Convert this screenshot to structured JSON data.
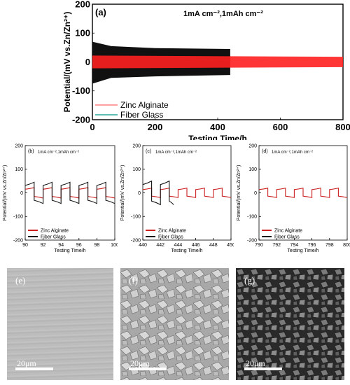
{
  "charts": [
    {
      "id": "a",
      "panel_label": "(a)",
      "condition": "1mA cm⁻²,1mAh cm⁻²",
      "ylabel": "Potential/(mV vs.Zn/Zn²⁺)",
      "xlabel": "Testing Time/h",
      "xlim": [
        0,
        800
      ],
      "ylim": [
        -200,
        200
      ],
      "xticks": [
        "0",
        "200",
        "400",
        "600",
        "800"
      ],
      "yticks": [
        "-200",
        "-100",
        "0",
        "100",
        "200"
      ],
      "legend": [
        "Zinc Alginate",
        "Fiber Glass"
      ],
      "series": [
        {
          "name": "Zinc Alginate",
          "color": "#ff2020",
          "envelope": [
            [
              0,
              -22,
              22
            ],
            [
              800,
              -18,
              18
            ]
          ]
        },
        {
          "name": "Fiber Glass",
          "color": "#111111",
          "envelope": [
            [
              0,
              -75,
              70
            ],
            [
              60,
              -55,
              55
            ],
            [
              200,
              -50,
              48
            ],
            [
              440,
              -45,
              45
            ]
          ]
        }
      ]
    },
    {
      "id": "b",
      "panel_label": "(b)",
      "condition": "1mA cm⁻²,1mAh cm⁻²",
      "ylabel": "Potential/(mV vs.Zn/Zn²⁺)",
      "xlabel": "Testing Time/h",
      "xlim": [
        90,
        100
      ],
      "ylim": [
        -200,
        200
      ],
      "xticks": [
        "90",
        "92",
        "94",
        "96",
        "98",
        "100"
      ],
      "yticks": [
        "-200",
        "-100",
        "0",
        "100",
        "200"
      ],
      "legend": [
        "Zinc Alginate",
        "Fiber Glass"
      ],
      "series": [
        {
          "name": "Zinc Alginate",
          "color": "#cc1f1f",
          "amplitude": 22,
          "segments": [
            [
              90,
              100
            ]
          ]
        },
        {
          "name": "Fiber Glass",
          "color": "#111111",
          "amplitude": 45,
          "segments": [
            [
              90,
              100
            ]
          ]
        }
      ]
    },
    {
      "id": "c",
      "panel_label": "(c)",
      "condition": "1mA cm⁻²,1mAh cm⁻²",
      "ylabel": "Potential/(mV vs.Zn/Zn²⁺)",
      "xlabel": "Testing Time/h",
      "xlim": [
        440,
        450
      ],
      "ylim": [
        -200,
        200
      ],
      "xticks": [
        "440",
        "442",
        "444",
        "446",
        "448",
        "450"
      ],
      "yticks": [
        "-200",
        "-100",
        "0",
        "100",
        "200"
      ],
      "legend": [
        "Zinc Alginate",
        "Fiber Glass"
      ],
      "series": [
        {
          "name": "Zinc Alginate",
          "color": "#cc1f1f",
          "amplitude": 20,
          "segments": [
            [
              440,
              450
            ]
          ]
        },
        {
          "name": "Fiber Glass",
          "color": "#111111",
          "amplitude": 50,
          "segments": [
            [
              440,
              443.5
            ]
          ]
        }
      ]
    },
    {
      "id": "d",
      "panel_label": "(d)",
      "condition": "1mA cm⁻²,1mAh cm⁻²",
      "ylabel": "Potential/(mV vs.Zn/Zn²⁺)",
      "xlabel": "Testing Time/h",
      "xlim": [
        790,
        800
      ],
      "ylim": [
        -200,
        200
      ],
      "xticks": [
        "790",
        "792",
        "794",
        "796",
        "798",
        "800"
      ],
      "yticks": [
        "-200",
        "-100",
        "0",
        "100",
        "200"
      ],
      "legend": [
        "Zinc Alginate",
        "Fiber Glass"
      ],
      "series": [
        {
          "name": "Zinc Alginate",
          "color": "#cc1f1f",
          "amplitude": 20,
          "segments": [
            [
              790,
              800
            ]
          ]
        }
      ]
    }
  ],
  "images": [
    {
      "id": "e",
      "label": "(e)",
      "scale": "20μm"
    },
    {
      "id": "f",
      "label": "(f)",
      "scale": "20μm"
    },
    {
      "id": "g",
      "label": "(g)",
      "scale": "20μm"
    }
  ]
}
